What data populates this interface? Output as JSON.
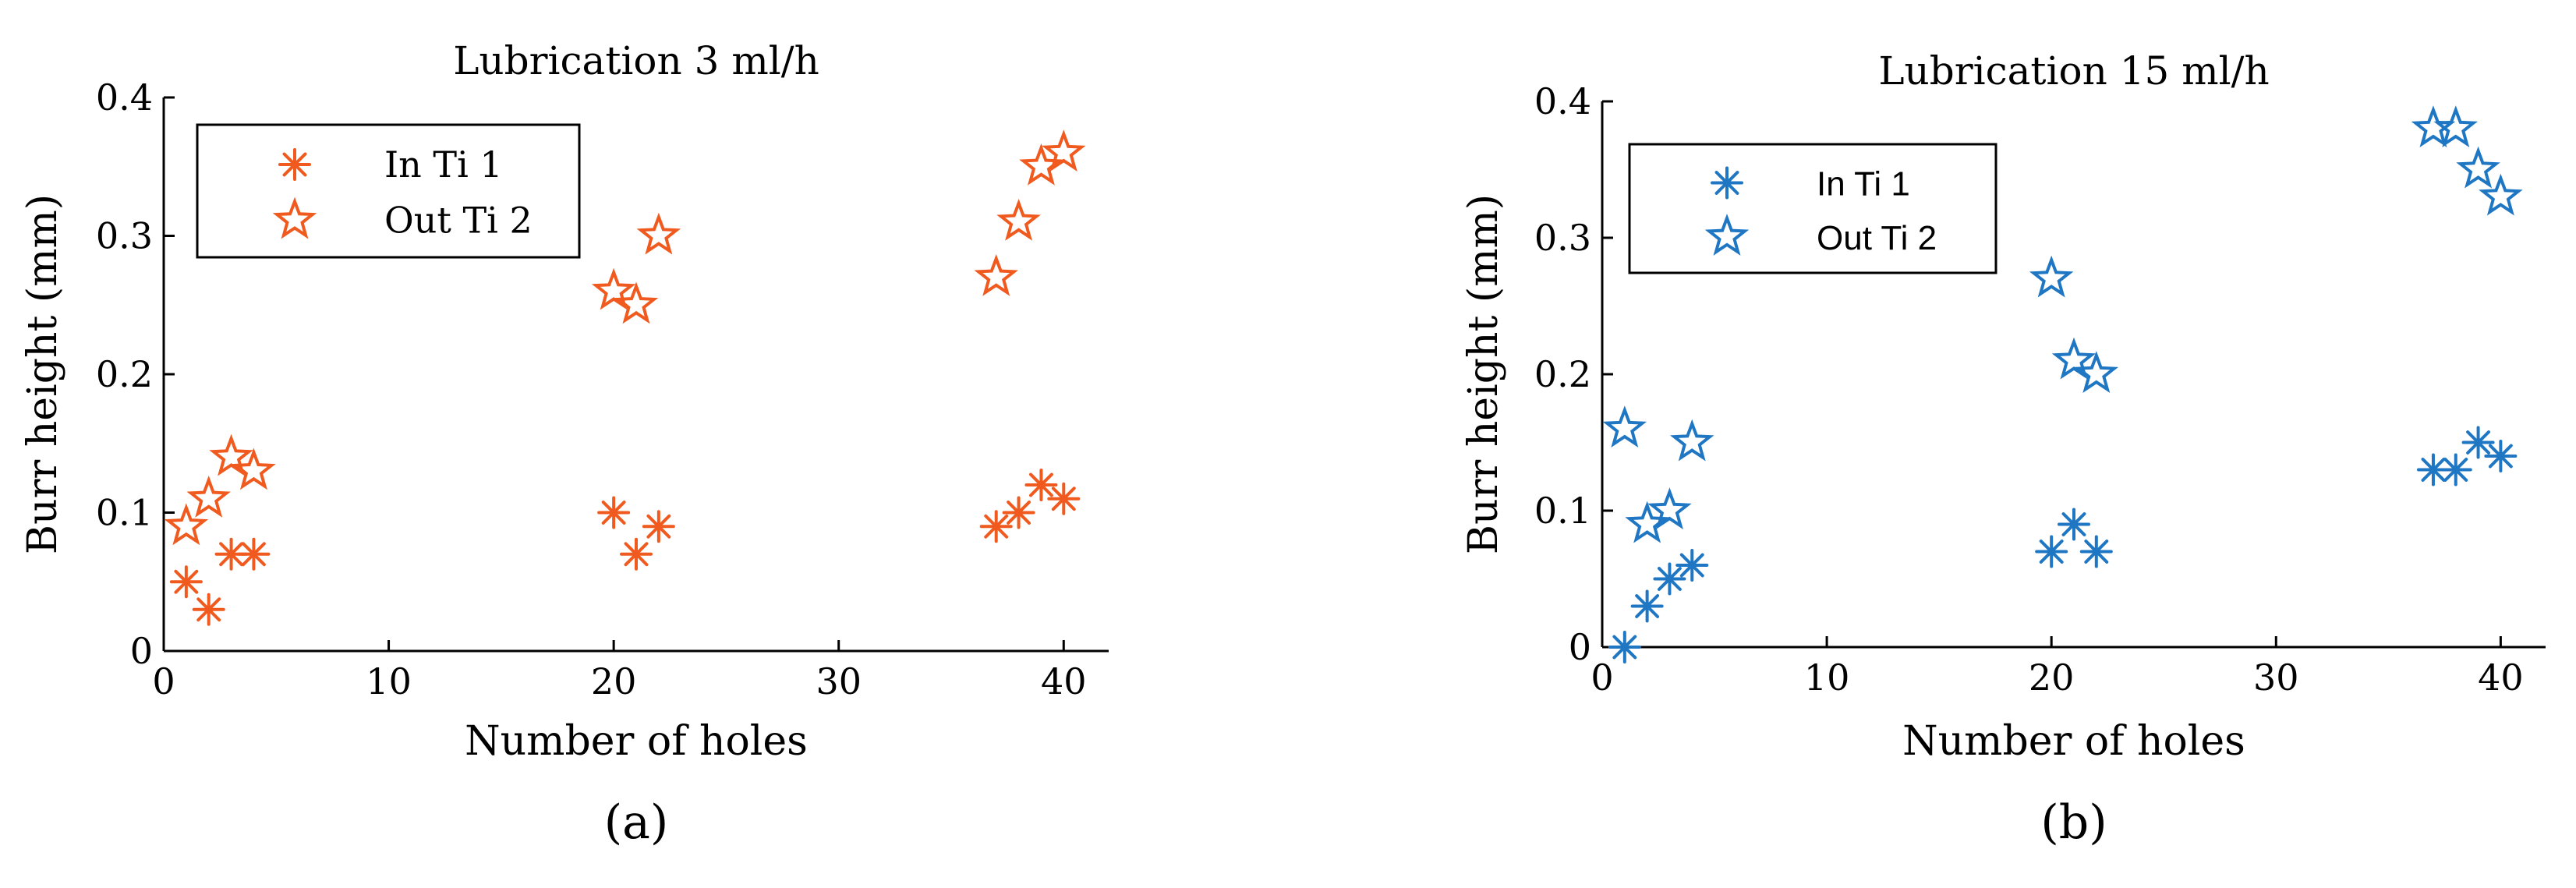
{
  "chart_data": [
    {
      "type": "scatter",
      "title": "Lubrication 3 ml/h",
      "xlabel": "Number of holes",
      "ylabel": "Burr height (mm)",
      "xlim": [
        0,
        42
      ],
      "ylim": [
        0,
        0.4
      ],
      "xticks": [
        0,
        10,
        20,
        30,
        40
      ],
      "yticks": [
        0,
        0.1,
        0.2,
        0.3,
        0.4
      ],
      "xtick_labels": [
        "0",
        "10",
        "20",
        "30",
        "40"
      ],
      "ytick_labels": [
        "0",
        "0.1",
        "0.2",
        "0.3",
        "0.4"
      ],
      "grid": false,
      "legend_position": "top-left",
      "color": "#f05a1e",
      "panel_label": "(a)",
      "series": [
        {
          "name": "In Ti 1",
          "marker": "asterisk",
          "x": [
            1,
            2,
            3,
            4,
            20,
            21,
            22,
            37,
            38,
            39,
            40
          ],
          "y": [
            0.05,
            0.03,
            0.07,
            0.07,
            0.1,
            0.07,
            0.09,
            0.09,
            0.1,
            0.12,
            0.11
          ]
        },
        {
          "name": "Out Ti 2",
          "marker": "star",
          "x": [
            1,
            2,
            3,
            4,
            20,
            21,
            22,
            37,
            38,
            39,
            40
          ],
          "y": [
            0.09,
            0.11,
            0.14,
            0.13,
            0.26,
            0.25,
            0.3,
            0.27,
            0.31,
            0.35,
            0.36
          ]
        }
      ]
    },
    {
      "type": "scatter",
      "title": "Lubrication 15 ml/h",
      "xlabel": "Number of holes",
      "ylabel": "Burr height (mm)",
      "xlim": [
        0,
        42
      ],
      "ylim": [
        0,
        0.4
      ],
      "xticks": [
        0,
        10,
        20,
        30,
        40
      ],
      "yticks": [
        0,
        0.1,
        0.2,
        0.3,
        0.4
      ],
      "xtick_labels": [
        "0",
        "10",
        "20",
        "30",
        "40"
      ],
      "ytick_labels": [
        "0",
        "0.1",
        "0.2",
        "0.3",
        "0.4"
      ],
      "grid": false,
      "legend_position": "top-left",
      "color": "#1f77c4",
      "panel_label": "(b)",
      "series": [
        {
          "name": "In Ti 1",
          "marker": "asterisk",
          "x": [
            1,
            2,
            3,
            4,
            20,
            21,
            22,
            37,
            38,
            39,
            40
          ],
          "y": [
            0.0,
            0.03,
            0.05,
            0.06,
            0.07,
            0.09,
            0.07,
            0.13,
            0.13,
            0.15,
            0.14
          ]
        },
        {
          "name": "Out Ti 2",
          "marker": "star",
          "x": [
            1,
            2,
            3,
            4,
            20,
            21,
            22,
            37,
            38,
            39,
            40
          ],
          "y": [
            0.16,
            0.09,
            0.1,
            0.15,
            0.27,
            0.21,
            0.2,
            0.38,
            0.38,
            0.35,
            0.33
          ]
        }
      ]
    }
  ]
}
